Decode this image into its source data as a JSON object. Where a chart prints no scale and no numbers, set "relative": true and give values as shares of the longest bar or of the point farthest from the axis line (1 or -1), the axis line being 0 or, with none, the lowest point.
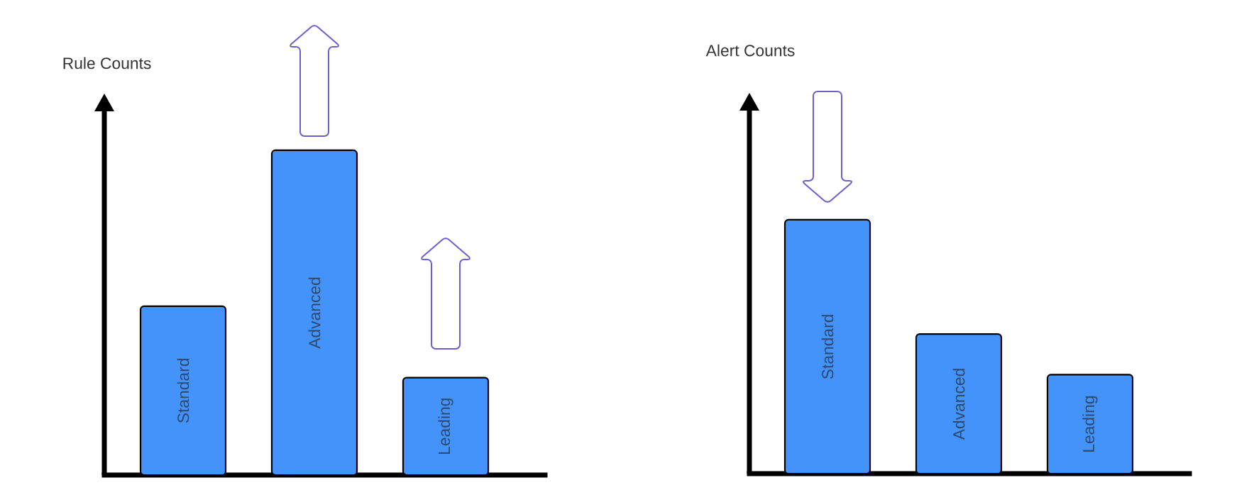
{
  "chart_data": [
    {
      "type": "bar",
      "title": "Rule Counts",
      "categories": [
        "Standard",
        "Advanced",
        "Leading"
      ],
      "values": [
        0.52,
        1,
        0.3
      ],
      "color": "#4493fa",
      "relative": true
    },
    {
      "type": "bar",
      "title": "Alert Counts",
      "categories": [
        "Standard",
        "Advanced",
        "Leading"
      ],
      "values": [
        1,
        0.55,
        0.39
      ],
      "color": "#4493fa",
      "relative": true
    }
  ]
}
